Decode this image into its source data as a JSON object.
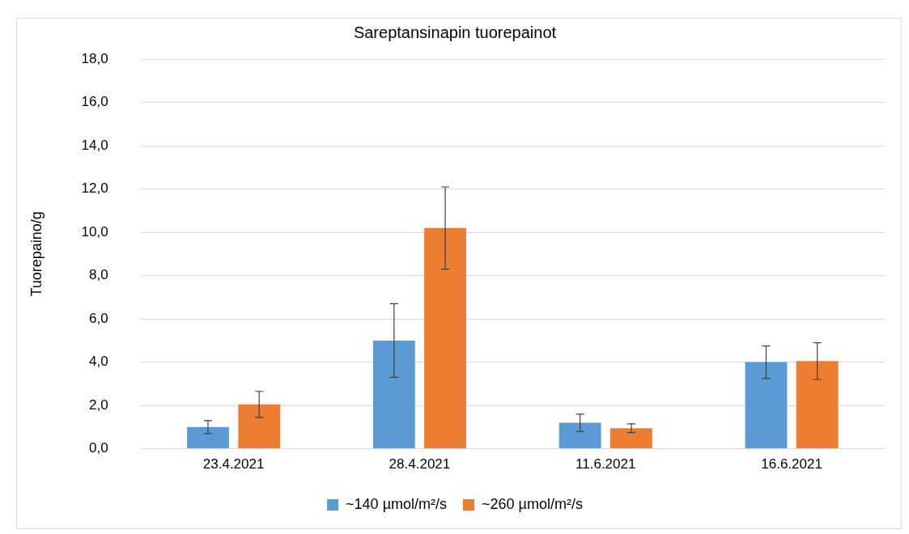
{
  "chart_data": {
    "type": "bar",
    "title": "Sareptansinapin tuorepainot",
    "ylabel": "Tuorepaino/g",
    "categories": [
      "23.4.2021",
      "28.4.2021",
      "11.6.2021",
      "16.6.2021"
    ],
    "series": [
      {
        "name": "~140 µmol/m²/s",
        "color": "#5b9bd5",
        "values": [
          1.0,
          5.0,
          1.2,
          4.0
        ],
        "errors": [
          0.3,
          1.7,
          0.4,
          0.75
        ]
      },
      {
        "name": "~260 µmol/m²/s",
        "color": "#ed7d31",
        "values": [
          2.05,
          10.2,
          0.95,
          4.05
        ],
        "errors": [
          0.6,
          1.9,
          0.2,
          0.85
        ]
      }
    ],
    "ylim": [
      0,
      18
    ],
    "yticks": [
      {
        "value": 0,
        "label": "0,0"
      },
      {
        "value": 2,
        "label": "2,0"
      },
      {
        "value": 4,
        "label": "4,0"
      },
      {
        "value": 6,
        "label": "6,0"
      },
      {
        "value": 8,
        "label": "8,0"
      },
      {
        "value": 10,
        "label": "10,0"
      },
      {
        "value": 12,
        "label": "12,0"
      },
      {
        "value": 14,
        "label": "14,0"
      },
      {
        "value": 16,
        "label": "16,0"
      },
      {
        "value": 18,
        "label": "18,0"
      }
    ],
    "grid": "y",
    "legend": "bottom"
  }
}
